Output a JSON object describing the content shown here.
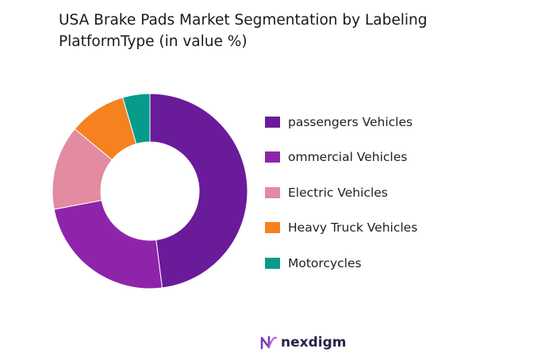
{
  "chart_data": {
    "type": "donut",
    "title": "USA Brake Pads Market Segmentation by Labeling PlatformType (in value %)",
    "categories": [
      "passengers Vehicles",
      "ommercial Vehicles",
      "Electric Vehicles",
      "Heavy Truck Vehicles",
      "Motorcycles"
    ],
    "values": [
      48,
      24,
      14,
      9.5,
      4.5
    ],
    "colors": [
      "#6a1b9a",
      "#8e24aa",
      "#e38ba0",
      "#f5811f",
      "#079b8c"
    ],
    "legend_position": "right"
  },
  "brand": {
    "logo_text": "nexdigm"
  }
}
